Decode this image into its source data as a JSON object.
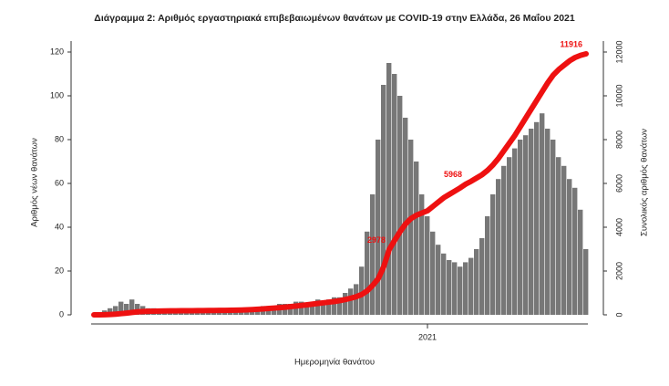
{
  "chart_data": {
    "type": "bar",
    "title": "Διάγραμμα 2: Αριθμός εργαστηριακά επιβεβαιωμένων θανάτων με COVID-19 στην Ελλάδα, 26 Μαΐου 2021",
    "xlabel": "Ημερομηνία θανάτου",
    "ylabel": "Αριθμός νέων θανάτων",
    "y2label": "Συνολικός αριθμός θανάτων",
    "categories": [
      null,
      null,
      null,
      null,
      null,
      null,
      null,
      null,
      null,
      null,
      null,
      null,
      null,
      null,
      null,
      null,
      null,
      null,
      null,
      null,
      null,
      null,
      null,
      null,
      null,
      null,
      null,
      null,
      null,
      null,
      null,
      null,
      null,
      null,
      null,
      null,
      null,
      null,
      null,
      null,
      null,
      null,
      null,
      null,
      null,
      null,
      null,
      null,
      null,
      null,
      null,
      null,
      null,
      null,
      null,
      null,
      null,
      null,
      null,
      null,
      null,
      "2021",
      null,
      null,
      null,
      null,
      null,
      null,
      null,
      null,
      null,
      null,
      null,
      null,
      null,
      null,
      null,
      null,
      null,
      null,
      null,
      null,
      null,
      null,
      null,
      null,
      null,
      null,
      null,
      null,
      null
    ],
    "series": [
      {
        "type": "bar",
        "color": "#777777",
        "values": [
          0,
          1,
          2,
          3,
          4,
          6,
          5,
          7,
          5,
          4,
          3,
          3,
          2,
          2,
          1,
          1,
          1,
          1,
          1,
          1,
          1,
          1,
          1,
          1,
          1,
          2,
          2,
          2,
          2,
          3,
          3,
          4,
          4,
          4,
          5,
          5,
          5,
          6,
          6,
          5,
          6,
          7,
          5,
          7,
          8,
          8,
          10,
          12,
          14,
          22,
          38,
          55,
          80,
          105,
          115,
          110,
          100,
          90,
          80,
          70,
          55,
          45,
          38,
          32,
          28,
          25,
          24,
          22,
          24,
          26,
          30,
          35,
          45,
          55,
          62,
          68,
          72,
          76,
          80,
          82,
          85,
          88,
          92,
          85,
          80,
          72,
          68,
          62,
          58,
          48,
          30
        ]
      },
      {
        "type": "line",
        "axis": "y2",
        "color": "#ee1111",
        "values": [
          0,
          1,
          5,
          15,
          30,
          55,
          80,
          110,
          135,
          150,
          160,
          165,
          170,
          175,
          180,
          183,
          185,
          188,
          190,
          192,
          195,
          198,
          200,
          202,
          205,
          210,
          215,
          220,
          230,
          240,
          255,
          270,
          290,
          310,
          330,
          350,
          375,
          400,
          430,
          460,
          490,
          520,
          550,
          580,
          610,
          650,
          700,
          760,
          830,
          930,
          1100,
          1350,
          1650,
          2200,
          2978,
          3400,
          3800,
          4150,
          4400,
          4550,
          4650,
          4750,
          4950,
          5150,
          5350,
          5500,
          5650,
          5800,
          5968,
          6100,
          6250,
          6400,
          6600,
          6850,
          7150,
          7500,
          7850,
          8200,
          8600,
          9000,
          9400,
          9800,
          10200,
          10600,
          10950,
          11200,
          11400,
          11600,
          11750,
          11850,
          11916
        ],
        "value_labels": [
          null,
          null,
          null,
          null,
          null,
          null,
          null,
          null,
          null,
          null,
          null,
          null,
          null,
          null,
          null,
          null,
          null,
          null,
          null,
          null,
          null,
          null,
          null,
          null,
          null,
          null,
          null,
          null,
          null,
          null,
          null,
          null,
          null,
          null,
          null,
          null,
          null,
          null,
          null,
          null,
          null,
          null,
          null,
          null,
          null,
          null,
          null,
          null,
          null,
          null,
          null,
          null,
          null,
          null,
          "2978",
          null,
          null,
          null,
          null,
          null,
          null,
          null,
          null,
          null,
          null,
          null,
          null,
          null,
          "5968",
          null,
          null,
          null,
          null,
          null,
          null,
          null,
          null,
          null,
          null,
          null,
          null,
          null,
          null,
          null,
          null,
          null,
          null,
          null,
          null,
          null,
          "11916"
        ]
      }
    ],
    "ylim": [
      0,
      125
    ],
    "yticks": [
      0,
      20,
      40,
      60,
      80,
      100,
      120
    ],
    "y2lim": [
      0,
      12500
    ],
    "y2ticks": [
      0,
      2000,
      4000,
      6000,
      8000,
      10000,
      12000
    ],
    "grid": false
  }
}
